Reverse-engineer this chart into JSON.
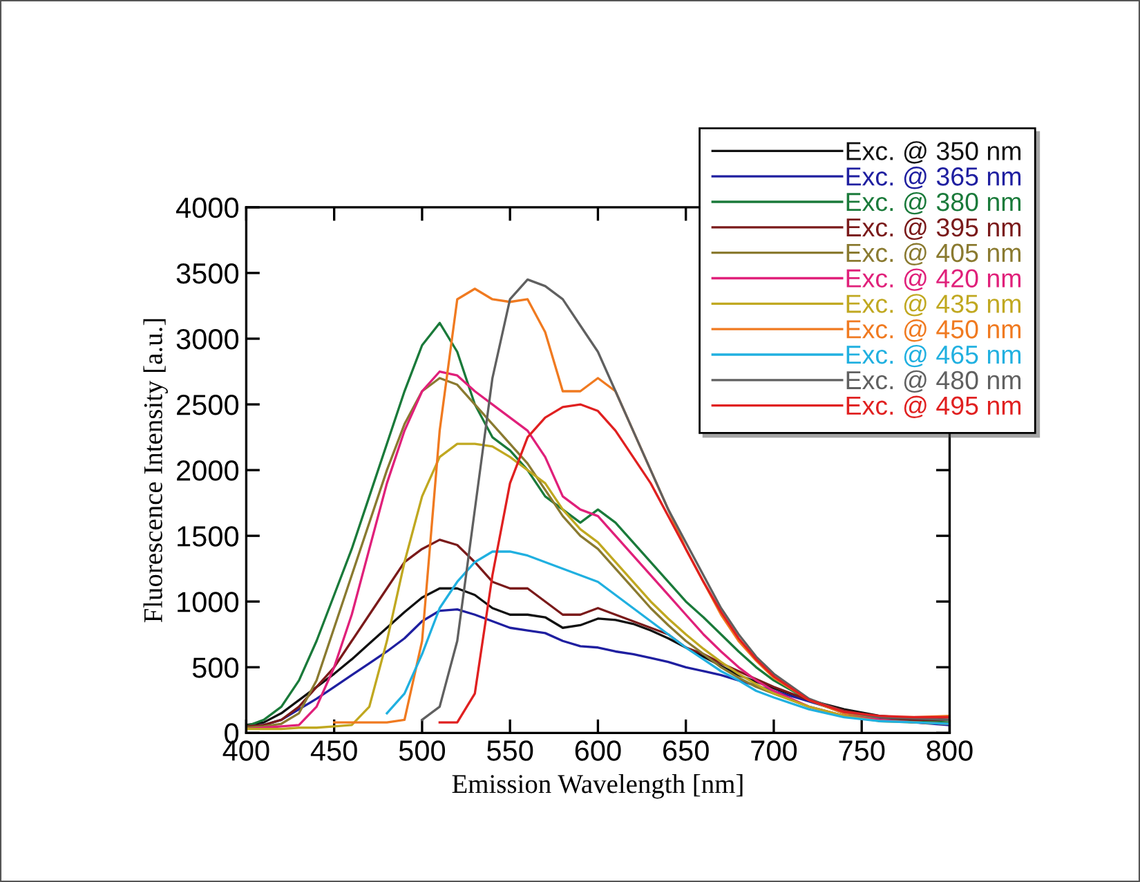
{
  "chart_data": {
    "type": "line",
    "xlabel": "Emission Wavelength [nm]",
    "ylabel": "Fluorescence Intensity [a.u.]",
    "xlim": [
      400,
      800
    ],
    "xticks": [
      400,
      450,
      500,
      550,
      600,
      650,
      700,
      750,
      800
    ],
    "ylim": [
      0,
      4000
    ],
    "yticks": [
      0,
      500,
      1000,
      1500,
      2000,
      2500,
      3000,
      3500,
      4000
    ],
    "grid": false,
    "legend": "top right",
    "marker": "none",
    "line_style": "solid",
    "x": [
      400,
      410,
      420,
      430,
      440,
      450,
      460,
      470,
      480,
      490,
      500,
      510,
      520,
      530,
      540,
      550,
      560,
      570,
      580,
      590,
      600,
      610,
      620,
      630,
      640,
      650,
      660,
      670,
      680,
      690,
      700,
      720,
      740,
      760,
      780,
      800
    ],
    "series": [
      {
        "name": "Exc. @ 350 nm",
        "color": "#111111",
        "values": [
          60,
          80,
          150,
          250,
          350,
          450,
          560,
          680,
          800,
          920,
          1030,
          1100,
          1100,
          1050,
          950,
          900,
          900,
          880,
          800,
          820,
          870,
          860,
          830,
          780,
          720,
          650,
          580,
          510,
          440,
          390,
          340,
          250,
          180,
          130,
          110,
          100
        ]
      },
      {
        "name": "Exc. @ 365 nm",
        "color": "#1f1fa0",
        "values": [
          50,
          60,
          100,
          180,
          260,
          350,
          440,
          530,
          620,
          720,
          850,
          930,
          940,
          900,
          850,
          800,
          780,
          760,
          700,
          660,
          650,
          620,
          600,
          570,
          540,
          500,
          470,
          440,
          400,
          360,
          320,
          240,
          160,
          110,
          80,
          60
        ]
      },
      {
        "name": "Exc. @ 380 nm",
        "color": "#1a7a3a",
        "values": [
          50,
          100,
          200,
          400,
          700,
          1050,
          1400,
          1800,
          2200,
          2600,
          2950,
          3120,
          2900,
          2500,
          2250,
          2150,
          2000,
          1800,
          1700,
          1600,
          1700,
          1600,
          1450,
          1300,
          1150,
          1000,
          880,
          750,
          620,
          500,
          400,
          250,
          150,
          100,
          90,
          80
        ]
      },
      {
        "name": "Exc. @ 395 nm",
        "color": "#7a1a1a",
        "values": [
          50,
          60,
          100,
          200,
          350,
          500,
          700,
          900,
          1100,
          1300,
          1400,
          1470,
          1430,
          1300,
          1150,
          1100,
          1100,
          1000,
          900,
          900,
          950,
          900,
          850,
          800,
          750,
          650,
          600,
          530,
          470,
          410,
          350,
          250,
          170,
          120,
          100,
          100
        ]
      },
      {
        "name": "Exc. @ 405 nm",
        "color": "#8a7a30",
        "values": [
          40,
          50,
          70,
          150,
          400,
          800,
          1200,
          1600,
          2000,
          2350,
          2600,
          2700,
          2650,
          2500,
          2350,
          2200,
          2050,
          1850,
          1650,
          1500,
          1400,
          1250,
          1100,
          950,
          820,
          700,
          600,
          500,
          420,
          350,
          300,
          200,
          130,
          100,
          80,
          70
        ]
      },
      {
        "name": "Exc. @ 420 nm",
        "color": "#e0207a",
        "values": [
          30,
          40,
          50,
          60,
          200,
          500,
          900,
          1400,
          1900,
          2300,
          2600,
          2750,
          2720,
          2600,
          2500,
          2400,
          2300,
          2100,
          1800,
          1700,
          1650,
          1500,
          1350,
          1200,
          1050,
          900,
          750,
          620,
          500,
          400,
          320,
          200,
          130,
          100,
          80,
          70
        ]
      },
      {
        "name": "Exc. @ 435 nm",
        "color": "#c0a820",
        "values": [
          30,
          30,
          30,
          40,
          40,
          50,
          60,
          200,
          700,
          1300,
          1800,
          2100,
          2200,
          2200,
          2180,
          2100,
          2000,
          1900,
          1700,
          1550,
          1450,
          1300,
          1150,
          1000,
          870,
          750,
          640,
          540,
          450,
          370,
          300,
          200,
          130,
          90,
          80,
          70
        ]
      },
      {
        "name": "Exc. @ 450 nm",
        "color": "#f07a20",
        "values": [
          null,
          null,
          null,
          null,
          null,
          80,
          80,
          80,
          80,
          100,
          700,
          2300,
          3300,
          3380,
          3300,
          3280,
          3300,
          3050,
          2600,
          2600,
          2700,
          2600,
          2300,
          2000,
          1700,
          1400,
          1150,
          900,
          700,
          550,
          420,
          250,
          150,
          120,
          120,
          130
        ]
      },
      {
        "name": "Exc. @ 465 nm",
        "color": "#20b0e0",
        "values": [
          null,
          null,
          null,
          null,
          null,
          null,
          null,
          null,
          150,
          300,
          600,
          950,
          1150,
          1300,
          1380,
          1380,
          1350,
          1300,
          1250,
          1200,
          1150,
          1050,
          950,
          850,
          750,
          650,
          560,
          470,
          400,
          320,
          270,
          180,
          120,
          90,
          80,
          70
        ]
      },
      {
        "name": "Exc. @ 480 nm",
        "color": "#606060",
        "values": [
          null,
          null,
          null,
          null,
          null,
          null,
          null,
          null,
          null,
          null,
          100,
          200,
          700,
          1700,
          2700,
          3300,
          3450,
          3400,
          3300,
          3100,
          2900,
          2600,
          2300,
          2000,
          1700,
          1450,
          1200,
          950,
          750,
          580,
          450,
          260,
          160,
          120,
          110,
          100
        ]
      },
      {
        "name": "Exc. @ 495 nm",
        "color": "#e02020",
        "values": [
          null,
          null,
          null,
          null,
          null,
          null,
          null,
          null,
          null,
          null,
          null,
          80,
          80,
          300,
          1200,
          1900,
          2250,
          2400,
          2480,
          2500,
          2450,
          2300,
          2100,
          1900,
          1650,
          1400,
          1150,
          920,
          720,
          560,
          430,
          250,
          160,
          130,
          120,
          120
        ]
      }
    ]
  }
}
